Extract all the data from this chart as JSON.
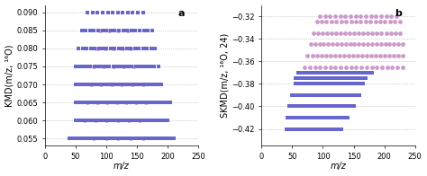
{
  "panel_a": {
    "label": "a",
    "xlabel": "m/z",
    "ylabel": "KMD(m/z, ¹⁶O)",
    "xlim": [
      0,
      250
    ],
    "ylim": [
      0.053,
      0.092
    ],
    "yticks": [
      0.055,
      0.06,
      0.065,
      0.07,
      0.075,
      0.08,
      0.085,
      0.09
    ],
    "xticks": [
      0,
      50,
      100,
      150,
      200,
      250
    ],
    "square_color": "#6666cc",
    "circle_color": "#cc99cc",
    "square_size": 10,
    "circle_size": 12
  },
  "panel_b": {
    "label": "b",
    "xlabel": "m/z",
    "ylabel": "SKMD(m/z, ¹⁶O, 24)",
    "xlim": [
      0,
      250
    ],
    "ylim": [
      -0.435,
      -0.31
    ],
    "yticks": [
      -0.42,
      -0.4,
      -0.38,
      -0.36,
      -0.34,
      -0.32
    ],
    "xticks": [
      0,
      50,
      100,
      150,
      200,
      250
    ],
    "square_color": "#6666cc",
    "circle_color": "#cc99cc",
    "square_size": 10,
    "circle_size": 12
  },
  "background_color": "#ffffff",
  "grid_color": "#aaaaaa",
  "tick_fontsize": 6,
  "label_fontsize": 7
}
